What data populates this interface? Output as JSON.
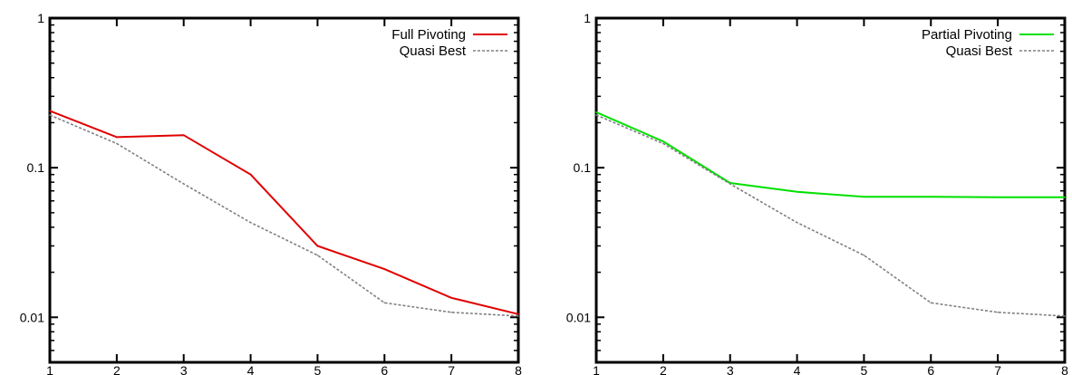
{
  "chart_data": [
    {
      "type": "line",
      "title": "",
      "xlabel": "",
      "ylabel": "",
      "yscale": "log",
      "xlim": [
        1,
        8
      ],
      "ylim": [
        0.005,
        1
      ],
      "x": [
        1,
        2,
        3,
        4,
        5,
        6,
        7,
        8
      ],
      "xticks": [
        "1",
        "2",
        "3",
        "4",
        "5",
        "6",
        "7",
        "8"
      ],
      "yticks": [
        {
          "value": 1,
          "label": "1"
        },
        {
          "value": 0.1,
          "label": "0.1"
        },
        {
          "value": 0.01,
          "label": "0.01"
        }
      ],
      "grid": false,
      "legend_position": "top-right",
      "series": [
        {
          "name": "Full Pivoting",
          "color": "#e00000",
          "style": "solid",
          "values": [
            0.24,
            0.16,
            0.165,
            0.09,
            0.03,
            0.021,
            0.0135,
            0.0105
          ]
        },
        {
          "name": "Quasi Best",
          "color": "#808080",
          "style": "dashed",
          "values": [
            0.225,
            0.145,
            0.078,
            0.043,
            0.026,
            0.0125,
            0.0108,
            0.0102
          ]
        }
      ]
    },
    {
      "type": "line",
      "title": "",
      "xlabel": "",
      "ylabel": "",
      "yscale": "log",
      "xlim": [
        1,
        8
      ],
      "ylim": [
        0.005,
        1
      ],
      "x": [
        1,
        2,
        3,
        4,
        5,
        6,
        7,
        8
      ],
      "xticks": [
        "1",
        "2",
        "3",
        "4",
        "5",
        "6",
        "7",
        "8"
      ],
      "yticks": [
        {
          "value": 1,
          "label": "1"
        },
        {
          "value": 0.1,
          "label": "0.1"
        },
        {
          "value": 0.01,
          "label": "0.01"
        }
      ],
      "grid": false,
      "legend_position": "top-right",
      "series": [
        {
          "name": "Partial Pivoting",
          "color": "#00e000",
          "style": "solid",
          "values": [
            0.235,
            0.15,
            0.079,
            0.069,
            0.064,
            0.064,
            0.0635,
            0.0635
          ]
        },
        {
          "name": "Quasi Best",
          "color": "#808080",
          "style": "dashed",
          "values": [
            0.225,
            0.145,
            0.078,
            0.043,
            0.026,
            0.0125,
            0.0108,
            0.0102
          ]
        }
      ]
    }
  ]
}
